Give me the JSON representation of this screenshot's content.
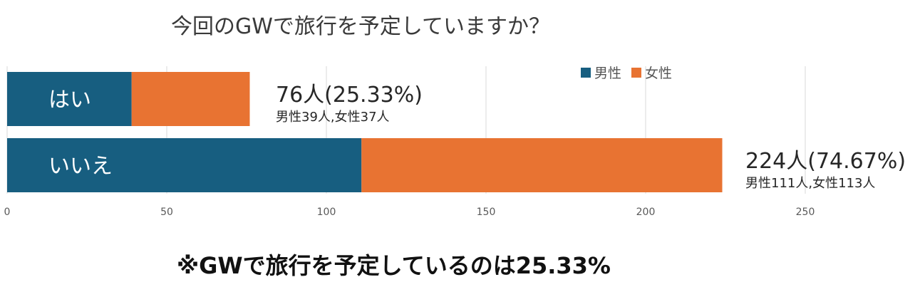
{
  "chart_data": {
    "type": "bar",
    "orientation": "horizontal",
    "stacked": true,
    "title": "今回のGWで旅行を予定していますか？",
    "categories": [
      "はい",
      "いいえ"
    ],
    "series": [
      {
        "name": "男性",
        "values": [
          39,
          111
        ],
        "color": "#175E80"
      },
      {
        "name": "女性",
        "values": [
          37,
          113
        ],
        "color": "#E87332"
      }
    ],
    "totals": [
      "76人(25.33%)",
      "224人(74.67%)"
    ],
    "breakdowns": [
      "男性39人,女性37人",
      "男性111人,女性113人"
    ],
    "xlim": [
      0,
      250
    ],
    "xticks": [
      "0",
      "50",
      "100",
      "150",
      "200",
      "250"
    ],
    "grid": true,
    "legend_position": "top-right"
  },
  "footnote": "※GWで旅行を予定しているのは25.33%"
}
